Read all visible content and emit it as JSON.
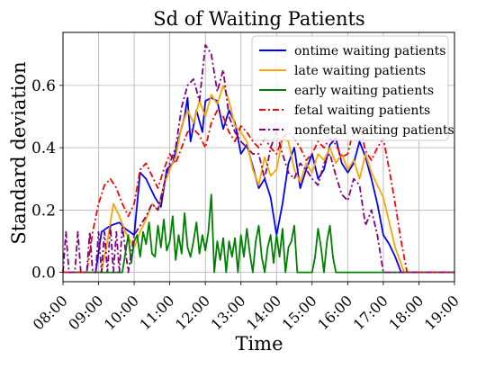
{
  "chart_data": {
    "type": "line",
    "title": "Sd of Waiting Patients",
    "xlabel": "Time",
    "ylabel": "Standard deviation",
    "xlim": [
      "08:00",
      "19:00"
    ],
    "ylim": [
      -0.03,
      0.77
    ],
    "x_ticks": [
      "08:00",
      "09:00",
      "10:00",
      "11:00",
      "12:00",
      "13:00",
      "14:00",
      "15:00",
      "16:00",
      "17:00",
      "18:00",
      "19:00"
    ],
    "y_ticks": [
      0.0,
      0.2,
      0.4,
      0.6
    ],
    "y_tick_labels": [
      "0.0",
      "0.2",
      "0.4",
      "0.6"
    ],
    "grid": true,
    "legend_position": "top-right",
    "series": [
      {
        "name": "ontime waiting patients",
        "color": "#0000ff",
        "dash": "solid",
        "x": [
          "08:00",
          "08:55",
          "09:05",
          "09:20",
          "09:35",
          "09:45",
          "10:00",
          "10:10",
          "10:20",
          "10:35",
          "10:45",
          "10:55",
          "11:05",
          "11:15",
          "11:25",
          "11:30",
          "11:35",
          "11:45",
          "11:55",
          "12:00",
          "12:10",
          "12:20",
          "12:30",
          "12:40",
          "12:50",
          "13:00",
          "13:10",
          "13:20",
          "13:30",
          "13:40",
          "13:50",
          "14:00",
          "14:10",
          "14:20",
          "14:30",
          "14:40",
          "14:50",
          "15:00",
          "15:10",
          "15:20",
          "15:30",
          "15:40",
          "15:50",
          "16:00",
          "16:10",
          "16:20",
          "16:30",
          "16:40",
          "16:50",
          "17:00",
          "17:10",
          "17:20",
          "17:30",
          "19:00"
        ],
        "values": [
          0.0,
          0.0,
          0.13,
          0.15,
          0.16,
          0.14,
          0.12,
          0.32,
          0.3,
          0.24,
          0.21,
          0.33,
          0.35,
          0.43,
          0.5,
          0.56,
          0.42,
          0.52,
          0.45,
          0.55,
          0.56,
          0.55,
          0.46,
          0.52,
          0.48,
          0.38,
          0.41,
          0.34,
          0.27,
          0.3,
          0.24,
          0.12,
          0.22,
          0.35,
          0.4,
          0.27,
          0.33,
          0.38,
          0.3,
          0.33,
          0.41,
          0.43,
          0.35,
          0.32,
          0.35,
          0.42,
          0.37,
          0.3,
          0.22,
          0.12,
          0.09,
          0.05,
          0.0,
          0.0
        ]
      },
      {
        "name": "late waiting patients",
        "color": "#ffa500",
        "dash": "solid",
        "x": [
          "08:00",
          "09:05",
          "09:15",
          "09:25",
          "09:35",
          "09:45",
          "10:00",
          "10:10",
          "10:20",
          "10:30",
          "10:40",
          "10:50",
          "11:00",
          "11:10",
          "11:20",
          "11:30",
          "11:40",
          "11:50",
          "12:00",
          "12:10",
          "12:20",
          "12:30",
          "12:40",
          "12:50",
          "13:00",
          "13:10",
          "13:20",
          "13:30",
          "13:40",
          "13:50",
          "14:00",
          "14:10",
          "14:20",
          "14:30",
          "14:40",
          "14:50",
          "15:00",
          "15:10",
          "15:20",
          "15:30",
          "15:40",
          "15:50",
          "16:00",
          "16:10",
          "16:20",
          "16:30",
          "16:40",
          "16:50",
          "17:00",
          "17:10",
          "17:20",
          "17:35",
          "19:00"
        ],
        "values": [
          0.0,
          0.0,
          0.1,
          0.22,
          0.18,
          0.13,
          0.08,
          0.13,
          0.17,
          0.22,
          0.2,
          0.28,
          0.33,
          0.37,
          0.47,
          0.52,
          0.48,
          0.55,
          0.5,
          0.57,
          0.54,
          0.6,
          0.55,
          0.47,
          0.45,
          0.42,
          0.33,
          0.28,
          0.37,
          0.31,
          0.33,
          0.43,
          0.42,
          0.33,
          0.29,
          0.35,
          0.32,
          0.38,
          0.36,
          0.4,
          0.35,
          0.38,
          0.33,
          0.36,
          0.3,
          0.38,
          0.32,
          0.28,
          0.24,
          0.16,
          0.08,
          0.0,
          0.0
        ]
      },
      {
        "name": "early waiting patients",
        "color": "#008000",
        "dash": "solid",
        "x": [
          "08:00",
          "09:40",
          "09:50",
          "09:55",
          "10:00",
          "10:05",
          "10:10",
          "10:15",
          "10:20",
          "10:25",
          "10:30",
          "10:35",
          "10:40",
          "10:45",
          "10:50",
          "10:55",
          "11:00",
          "11:05",
          "11:10",
          "11:15",
          "11:20",
          "11:25",
          "11:30",
          "11:35",
          "11:40",
          "11:45",
          "11:50",
          "11:55",
          "12:00",
          "12:05",
          "12:10",
          "12:15",
          "12:20",
          "12:25",
          "12:30",
          "12:35",
          "12:40",
          "12:45",
          "12:50",
          "12:55",
          "13:00",
          "13:05",
          "13:10",
          "13:15",
          "13:20",
          "13:25",
          "13:30",
          "13:35",
          "13:40",
          "13:45",
          "13:50",
          "13:55",
          "14:00",
          "14:05",
          "14:10",
          "14:15",
          "14:20",
          "14:25",
          "14:30",
          "14:35",
          "14:40",
          "14:50",
          "15:00",
          "15:05",
          "15:10",
          "15:15",
          "15:20",
          "15:25",
          "15:30",
          "15:35",
          "15:40",
          "15:50",
          "16:00",
          "16:05",
          "16:10",
          "19:00"
        ],
        "values": [
          0.0,
          0.0,
          0.12,
          0.03,
          0.1,
          0.12,
          0.05,
          0.13,
          0.09,
          0.16,
          0.06,
          0.05,
          0.15,
          0.08,
          0.17,
          0.07,
          0.1,
          0.18,
          0.04,
          0.12,
          0.06,
          0.19,
          0.08,
          0.05,
          0.1,
          0.16,
          0.06,
          0.12,
          0.07,
          0.13,
          0.25,
          0.0,
          0.1,
          0.04,
          0.11,
          0.0,
          0.1,
          0.05,
          0.11,
          0.0,
          0.12,
          0.05,
          0.14,
          0.06,
          0.0,
          0.1,
          0.15,
          0.05,
          0.0,
          0.08,
          0.12,
          0.03,
          0.12,
          0.05,
          0.14,
          0.0,
          0.08,
          0.1,
          0.15,
          0.0,
          0.0,
          0.0,
          0.0,
          0.05,
          0.14,
          0.08,
          0.0,
          0.1,
          0.15,
          0.05,
          0.0,
          0.0,
          0.0,
          0.0,
          0.0,
          0.0
        ]
      },
      {
        "name": "fetal waiting patients",
        "color": "#ff0000",
        "dash": "dashdot",
        "x": [
          "08:00",
          "08:40",
          "08:50",
          "09:00",
          "09:10",
          "09:20",
          "09:30",
          "09:40",
          "09:50",
          "10:00",
          "10:10",
          "10:20",
          "10:30",
          "10:40",
          "10:50",
          "11:00",
          "11:10",
          "11:20",
          "11:30",
          "11:40",
          "11:50",
          "12:00",
          "12:10",
          "12:20",
          "12:30",
          "12:40",
          "12:50",
          "13:00",
          "13:10",
          "13:20",
          "13:30",
          "13:40",
          "13:50",
          "14:00",
          "14:10",
          "14:20",
          "14:30",
          "14:40",
          "14:50",
          "15:00",
          "15:10",
          "15:20",
          "15:30",
          "15:40",
          "15:50",
          "16:00",
          "16:10",
          "16:20",
          "16:30",
          "16:40",
          "16:50",
          "17:00",
          "17:10",
          "17:20",
          "17:30",
          "17:40",
          "19:00"
        ],
        "values": [
          0.0,
          0.0,
          0.13,
          0.22,
          0.28,
          0.3,
          0.27,
          0.22,
          0.18,
          0.22,
          0.33,
          0.35,
          0.31,
          0.27,
          0.33,
          0.38,
          0.35,
          0.4,
          0.45,
          0.46,
          0.44,
          0.4,
          0.48,
          0.52,
          0.5,
          0.45,
          0.42,
          0.47,
          0.45,
          0.42,
          0.4,
          0.43,
          0.4,
          0.38,
          0.43,
          0.45,
          0.43,
          0.4,
          0.36,
          0.38,
          0.42,
          0.4,
          0.43,
          0.41,
          0.37,
          0.38,
          0.46,
          0.47,
          0.39,
          0.36,
          0.4,
          0.43,
          0.33,
          0.22,
          0.1,
          0.0,
          0.0
        ]
      },
      {
        "name": "nonfetal waiting patients",
        "color": "#800080",
        "dash": "dashdot",
        "x": [
          "08:00",
          "08:05",
          "08:10",
          "08:15",
          "08:20",
          "08:25",
          "08:30",
          "08:35",
          "08:40",
          "08:45",
          "08:50",
          "08:55",
          "09:00",
          "09:05",
          "09:10",
          "09:15",
          "09:20",
          "09:25",
          "09:30",
          "09:35",
          "09:40",
          "09:50",
          "10:00",
          "10:10",
          "10:20",
          "10:30",
          "10:40",
          "10:50",
          "11:00",
          "11:10",
          "11:20",
          "11:30",
          "11:40",
          "11:50",
          "12:00",
          "12:10",
          "12:20",
          "12:30",
          "12:40",
          "12:50",
          "13:00",
          "13:10",
          "13:20",
          "13:30",
          "13:40",
          "13:50",
          "14:00",
          "14:10",
          "14:20",
          "14:30",
          "14:40",
          "14:50",
          "15:00",
          "15:10",
          "15:20",
          "15:30",
          "15:40",
          "15:50",
          "16:00",
          "16:10",
          "16:20",
          "16:30",
          "16:40",
          "16:50",
          "17:00",
          "17:10",
          "19:00"
        ],
        "values": [
          0.0,
          0.13,
          0.0,
          0.0,
          0.0,
          0.13,
          0.0,
          0.0,
          0.0,
          0.13,
          0.0,
          0.0,
          0.13,
          0.0,
          0.13,
          0.0,
          0.15,
          0.0,
          0.13,
          0.0,
          0.15,
          0.0,
          0.12,
          0.15,
          0.18,
          0.22,
          0.2,
          0.28,
          0.35,
          0.4,
          0.53,
          0.6,
          0.62,
          0.55,
          0.73,
          0.7,
          0.58,
          0.65,
          0.5,
          0.45,
          0.42,
          0.4,
          0.38,
          0.38,
          0.3,
          0.4,
          0.45,
          0.38,
          0.32,
          0.3,
          0.35,
          0.33,
          0.3,
          0.28,
          0.35,
          0.38,
          0.31,
          0.25,
          0.23,
          0.3,
          0.28,
          0.15,
          0.2,
          0.12,
          0.0,
          0.0,
          0.0
        ]
      }
    ]
  }
}
